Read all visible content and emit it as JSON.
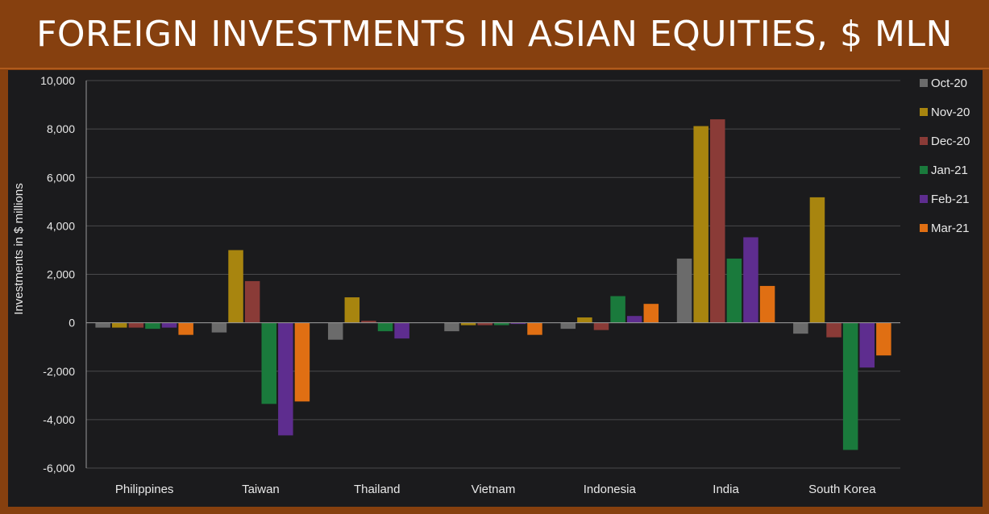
{
  "header": {
    "title": "FOREIGN INVESTMENTS IN ASIAN EQUITIES, $ MLN"
  },
  "colors": {
    "background": "#86400f",
    "plot": "#1b1b1d",
    "series": [
      "#6b6b6b",
      "#a8850f",
      "#8a3b37",
      "#1a7a3c",
      "#5e2d8f",
      "#e06f13"
    ]
  },
  "chart_data": {
    "type": "bar",
    "title": "FOREIGN INVESTMENTS IN ASIAN EQUITIES, $ MLN",
    "xlabel": "",
    "ylabel": "Investments in $ millions",
    "ylim": [
      -6000,
      10000
    ],
    "yticks": [
      -6000,
      -4000,
      -2000,
      0,
      2000,
      4000,
      6000,
      8000,
      10000
    ],
    "ytick_labels": [
      "-6,000",
      "-4,000",
      "-2,000",
      "0",
      "2,000",
      "4,000",
      "6,000",
      "8,000",
      "10,000"
    ],
    "grid": true,
    "legend": "right",
    "categories": [
      "Philippines",
      "Taiwan",
      "Thailand",
      "Vietnam",
      "Indonesia",
      "India",
      "South Korea"
    ],
    "series": [
      {
        "name": "Oct-20",
        "values": [
          -200,
          -400,
          -700,
          -350,
          -250,
          2650,
          -450
        ]
      },
      {
        "name": "Nov-20",
        "values": [
          -200,
          3000,
          1050,
          -100,
          220,
          8120,
          5180
        ]
      },
      {
        "name": "Dec-20",
        "values": [
          -200,
          1720,
          80,
          -100,
          -300,
          8400,
          -600
        ]
      },
      {
        "name": "Jan-21",
        "values": [
          -250,
          -3350,
          -350,
          -100,
          1100,
          2650,
          -5250
        ]
      },
      {
        "name": "Feb-21",
        "values": [
          -200,
          -4650,
          -650,
          -50,
          280,
          3530,
          -1850
        ]
      },
      {
        "name": "Mar-21",
        "values": [
          -500,
          -3250,
          0,
          -500,
          780,
          1520,
          -1350
        ]
      }
    ]
  }
}
